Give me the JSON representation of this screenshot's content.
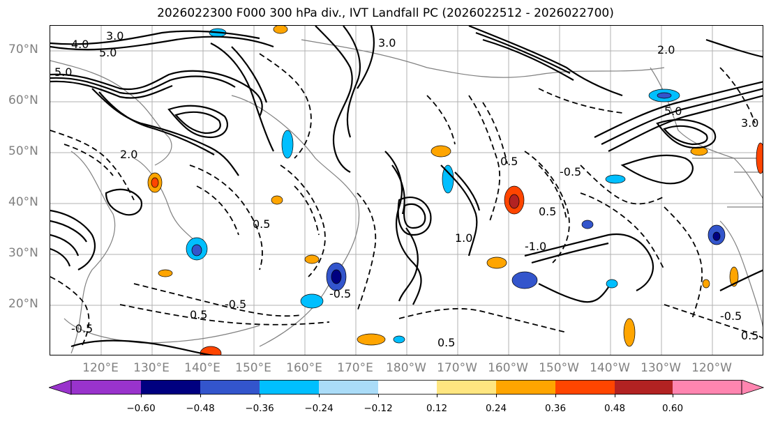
{
  "title": "2026022300 F000 300 hPa div., IVT Landfall PC (2026022512 - 2026022700)",
  "map": {
    "lat_labels": [
      "70°N",
      "60°N",
      "50°N",
      "40°N",
      "30°N",
      "20°N"
    ],
    "lon_labels": [
      "120°E",
      "130°E",
      "140°E",
      "150°E",
      "160°E",
      "170°E",
      "180°W",
      "170°W",
      "160°W",
      "150°W",
      "140°W",
      "130°W",
      "120°W"
    ],
    "contour_labels": [
      "5.0",
      "4.0",
      "5.0",
      "3.0",
      "2.0",
      "0.5",
      "-0.5",
      "1.0",
      "-1.0",
      "0.5",
      "-0.5",
      "2.0",
      "3.0",
      "0.5",
      "-0.5",
      "0.5",
      "5.0",
      "3.0",
      "-0.5",
      "0.5",
      "-0.5",
      "0.5"
    ],
    "colors": {
      "land_lines": "#9a9a9a",
      "grid": "#b0b0b0",
      "contour": "#000000"
    }
  },
  "colorbar": {
    "tick_labels": [
      "−0.60",
      "−0.48",
      "−0.36",
      "−0.24",
      "−0.12",
      "0.12",
      "0.24",
      "0.36",
      "0.48",
      "0.60"
    ],
    "colors": [
      "#9933cc",
      "#000080",
      "#3355cc",
      "#00bfff",
      "#aadcf8",
      "#ffffff",
      "#ffe680",
      "#ffa500",
      "#ff4500",
      "#b22222",
      "#ff85b0"
    ]
  }
}
